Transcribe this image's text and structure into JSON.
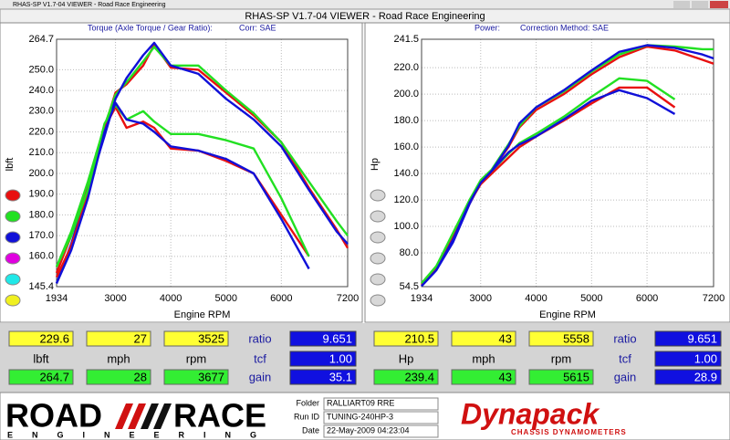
{
  "window": {
    "title": "RHAS-SP V1.7-04  VIEWER - Road Race Engineering",
    "caption": "RHAS-SP V1.7-04  VIEWER - Road Race Engineering"
  },
  "chart_data": [
    {
      "type": "line",
      "title": "Torque (Axle Torque / Gear Ratio):",
      "subtitle": "Corr: SAE",
      "x_label": "Engine RPM",
      "y_label": "lbft",
      "x": [
        1934,
        2200,
        2500,
        2800,
        3000,
        3200,
        3500,
        3700,
        4000,
        4500,
        5000,
        5500,
        6000,
        6500,
        7000,
        7200
      ],
      "xlim": [
        1934,
        7200
      ],
      "xticks": [
        1934,
        3000,
        4000,
        5000,
        6000,
        7200
      ],
      "ylim": [
        145.4,
        264.7
      ],
      "yticks": [
        145.4,
        {
          "value": 160,
          "label": "160.0"
        },
        {
          "value": 170,
          "label": "170.0"
        },
        {
          "value": 180,
          "label": "180.0"
        },
        {
          "value": 190,
          "label": "190.0"
        },
        {
          "value": 200,
          "label": "200.0"
        },
        {
          "value": 210,
          "label": "210.0"
        },
        {
          "value": 220,
          "label": "220.0"
        },
        {
          "value": 230,
          "label": "230.0"
        },
        {
          "value": 240,
          "label": "240.0"
        },
        {
          "value": 250,
          "label": "250.0"
        },
        264.7
      ],
      "grid": true,
      "legend_colors": [
        "#e81010",
        "#22e022",
        "#1010d8",
        "#e000e0",
        "#20e8e8",
        "#f0f020"
      ],
      "series": [
        {
          "color": "#e81010",
          "values": [
            152,
            170,
            195,
            222,
            239,
            243,
            252,
            262,
            251,
            250,
            239,
            228,
            215,
            193,
            173,
            164
          ]
        },
        {
          "color": "#22e022",
          "values": [
            155,
            172,
            196,
            223,
            238,
            244,
            254,
            261,
            252,
            252,
            240,
            229,
            215,
            196,
            177,
            170
          ]
        },
        {
          "color": "#1010d8",
          "values": [
            147,
            166,
            192,
            218,
            236,
            246,
            257,
            263,
            252,
            248,
            236,
            226,
            213,
            192,
            172,
            166
          ]
        },
        {
          "color": "#e81010",
          "values": [
            150,
            165,
            190,
            222,
            232,
            222,
            225,
            222,
            212,
            211,
            206,
            200,
            180,
            160,
            null,
            null
          ]
        },
        {
          "color": "#22e022",
          "values": [
            155,
            170,
            192,
            224,
            233,
            226,
            230,
            225,
            219,
            219,
            216,
            212,
            188,
            160,
            null,
            null
          ]
        },
        {
          "color": "#1010d8",
          "values": [
            147,
            163,
            188,
            220,
            234,
            226,
            224,
            220,
            213,
            211,
            207,
            200,
            178,
            154,
            null,
            null
          ]
        }
      ]
    },
    {
      "type": "line",
      "title": "Power:",
      "subtitle": "Correction Method: SAE",
      "x_label": "Engine RPM",
      "y_label": "Hp",
      "x": [
        1934,
        2200,
        2500,
        2800,
        3000,
        3200,
        3500,
        3700,
        4000,
        4500,
        5000,
        5500,
        6000,
        6500,
        7000,
        7200
      ],
      "xlim": [
        1934,
        7200
      ],
      "xticks": [
        1934,
        3000,
        4000,
        5000,
        6000,
        7200
      ],
      "ylim": [
        54.5,
        241.5
      ],
      "yticks": [
        54.5,
        {
          "value": 80,
          "label": "80.0"
        },
        {
          "value": 100,
          "label": "100.0"
        },
        {
          "value": 120,
          "label": "120.0"
        },
        {
          "value": 140,
          "label": "140.0"
        },
        {
          "value": 160,
          "label": "160.0"
        },
        {
          "value": 180,
          "label": "180.0"
        },
        {
          "value": 200,
          "label": "200.0"
        },
        {
          "value": 220,
          "label": "220.0"
        },
        241.5
      ],
      "grid": true,
      "legend_colors": [
        "#d8d8d8",
        "#d8d8d8",
        "#d8d8d8",
        "#d8d8d8",
        "#d8d8d8",
        "#d8d8d8"
      ],
      "series": [
        {
          "color": "#e81010",
          "values": [
            56,
            68,
            90,
            118,
            134,
            142,
            160,
            175,
            188,
            200,
            215,
            228,
            236,
            233,
            226,
            223
          ]
        },
        {
          "color": "#22e022",
          "values": [
            57,
            70,
            92,
            120,
            135,
            143,
            162,
            176,
            190,
            202,
            217,
            230,
            237,
            236,
            234,
            234
          ]
        },
        {
          "color": "#1010d8",
          "values": [
            55,
            67,
            88,
            117,
            133,
            142,
            161,
            178,
            190,
            203,
            218,
            232,
            237,
            235,
            230,
            227
          ]
        },
        {
          "color": "#e81010",
          "values": [
            56,
            68,
            92,
            118,
            132,
            140,
            152,
            160,
            168,
            180,
            193,
            205,
            205,
            190,
            null,
            null
          ]
        },
        {
          "color": "#22e022",
          "values": [
            57,
            70,
            95,
            120,
            134,
            142,
            155,
            163,
            170,
            183,
            198,
            212,
            210,
            196,
            null,
            null
          ]
        },
        {
          "color": "#1010d8",
          "values": [
            55,
            67,
            90,
            118,
            133,
            142,
            156,
            162,
            168,
            181,
            195,
            203,
            197,
            185,
            null,
            null
          ]
        }
      ]
    }
  ],
  "readouts": [
    {
      "rows": [
        [
          "229.6",
          "27",
          "3525",
          "ratio",
          "9.651"
        ],
        [
          "lbft",
          "mph",
          "rpm",
          "tcf",
          "1.00"
        ],
        [
          "264.7",
          "28",
          "3677",
          "gain",
          "35.1"
        ]
      ]
    },
    {
      "rows": [
        [
          "210.5",
          "43",
          "5558",
          "ratio",
          "9.651"
        ],
        [
          "Hp",
          "mph",
          "rpm",
          "tcf",
          "1.00"
        ],
        [
          "239.4",
          "43",
          "5615",
          "gain",
          "28.9"
        ]
      ]
    }
  ],
  "footer": {
    "logo_left": "ROAD",
    "logo_right": "RACE",
    "logo_sub": "ENGINEERING",
    "fields": [
      {
        "label": "Folder",
        "value": "RALLIART09 RRE"
      },
      {
        "label": "Run ID",
        "value": "TUNING-240HP-3"
      },
      {
        "label": "Date",
        "value": "22-May-2009  04:23:04"
      }
    ],
    "brand": "Dynapack",
    "brand_sub": "CHASSIS DYNAMOMETERS"
  }
}
